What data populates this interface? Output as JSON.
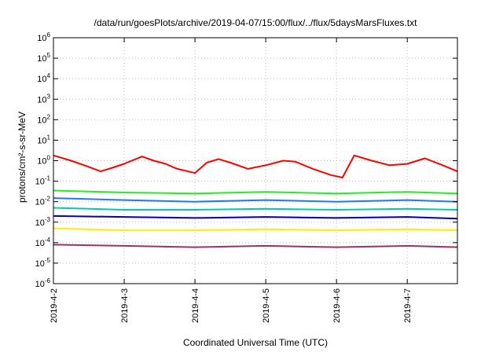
{
  "chart_data": {
    "type": "line",
    "title": "/data/run/goesPlots/archive/2019-04-07/15:00/flux/../flux/5daysMarsFluxes.txt",
    "xlabel": "Coordinated Universal Time (UTC)",
    "ylabel": "protons/cm²-s-sr-MeV",
    "y_scale": "log",
    "ylim": [
      1e-06,
      1000000.0
    ],
    "xlim": [
      "2019-04-02 00:00",
      "2019-04-07 17:00"
    ],
    "x_ticks": [
      "2019-4-2",
      "2019-4-3",
      "2019-4-4",
      "2019-4-5",
      "2019-4-6",
      "2019-4-7"
    ],
    "y_ticks": [
      {
        "base": "10",
        "exp": "-6",
        "value": 1e-06
      },
      {
        "base": "10",
        "exp": "-5",
        "value": 1e-05
      },
      {
        "base": "10",
        "exp": "-4",
        "value": 0.0001
      },
      {
        "base": "10",
        "exp": "-3",
        "value": 0.001
      },
      {
        "base": "10",
        "exp": "-2",
        "value": 0.01
      },
      {
        "base": "10",
        "exp": "-1",
        "value": 0.1
      },
      {
        "base": "10",
        "exp": "0",
        "value": 1
      },
      {
        "base": "10",
        "exp": "1",
        "value": 10
      },
      {
        "base": "10",
        "exp": "2",
        "value": 100
      },
      {
        "base": "10",
        "exp": "3",
        "value": 1000
      },
      {
        "base": "10",
        "exp": "4",
        "value": 10000
      },
      {
        "base": "10",
        "exp": "5",
        "value": 100000
      },
      {
        "base": "10",
        "exp": "6",
        "value": 1000000
      }
    ],
    "grid": true,
    "legend": "none",
    "series_colors": [
      "#ff0000",
      "#22ee22",
      "#2277ff",
      "#00ccaa",
      "#0000bb",
      "#ffee00",
      "#ffcc33",
      "#ee7744",
      "#993366"
    ],
    "series": [
      {
        "color": "#ff0000",
        "points": [
          [
            "2019-04-02 00:00",
            1.8
          ],
          [
            "2019-04-02 06:00",
            1.0
          ],
          [
            "2019-04-02 12:00",
            0.5
          ],
          [
            "2019-04-02 16:00",
            0.3
          ],
          [
            "2019-04-02 20:00",
            0.45
          ],
          [
            "2019-04-03 00:00",
            0.7
          ],
          [
            "2019-04-03 06:00",
            1.6
          ],
          [
            "2019-04-03 10:00",
            1.0
          ],
          [
            "2019-04-03 14:00",
            0.7
          ],
          [
            "2019-04-03 18:00",
            0.4
          ],
          [
            "2019-04-04 00:00",
            0.25
          ],
          [
            "2019-04-04 04:00",
            0.8
          ],
          [
            "2019-04-04 08:00",
            1.2
          ],
          [
            "2019-04-04 12:00",
            0.8
          ],
          [
            "2019-04-04 18:00",
            0.4
          ],
          [
            "2019-04-05 00:00",
            0.6
          ],
          [
            "2019-04-05 06:00",
            1.0
          ],
          [
            "2019-04-05 10:00",
            0.9
          ],
          [
            "2019-04-05 16:00",
            0.4
          ],
          [
            "2019-04-05 22:00",
            0.2
          ],
          [
            "2019-04-06 02:00",
            0.15
          ],
          [
            "2019-04-06 06:00",
            1.8
          ],
          [
            "2019-04-06 12:00",
            1.0
          ],
          [
            "2019-04-06 18:00",
            0.6
          ],
          [
            "2019-04-07 00:00",
            0.7
          ],
          [
            "2019-04-07 06:00",
            1.3
          ],
          [
            "2019-04-07 12:00",
            0.6
          ],
          [
            "2019-04-07 17:00",
            0.3
          ]
        ]
      },
      {
        "color": "#22ee22",
        "points": [
          [
            "2019-04-02 00:00",
            0.035
          ],
          [
            "2019-04-03 00:00",
            0.028
          ],
          [
            "2019-04-04 00:00",
            0.025
          ],
          [
            "2019-04-05 00:00",
            0.03
          ],
          [
            "2019-04-06 00:00",
            0.025
          ],
          [
            "2019-04-07 00:00",
            0.03
          ],
          [
            "2019-04-07 17:00",
            0.025
          ]
        ]
      },
      {
        "color": "#2277ff",
        "points": [
          [
            "2019-04-02 00:00",
            0.015
          ],
          [
            "2019-04-03 00:00",
            0.012
          ],
          [
            "2019-04-04 00:00",
            0.01
          ],
          [
            "2019-04-05 00:00",
            0.012
          ],
          [
            "2019-04-06 00:00",
            0.01
          ],
          [
            "2019-04-07 00:00",
            0.012
          ],
          [
            "2019-04-07 17:00",
            0.01
          ]
        ]
      },
      {
        "color": "#00ccaa",
        "points": [
          [
            "2019-04-02 00:00",
            0.005
          ],
          [
            "2019-04-03 00:00",
            0.004
          ],
          [
            "2019-04-04 00:00",
            0.004
          ],
          [
            "2019-04-05 00:00",
            0.0045
          ],
          [
            "2019-04-06 00:00",
            0.004
          ],
          [
            "2019-04-07 00:00",
            0.0045
          ],
          [
            "2019-04-07 17:00",
            0.004
          ]
        ]
      },
      {
        "color": "#0000bb",
        "points": [
          [
            "2019-04-02 00:00",
            0.002
          ],
          [
            "2019-04-03 00:00",
            0.0018
          ],
          [
            "2019-04-04 00:00",
            0.0016
          ],
          [
            "2019-04-05 00:00",
            0.0018
          ],
          [
            "2019-04-06 00:00",
            0.0016
          ],
          [
            "2019-04-07 00:00",
            0.0018
          ],
          [
            "2019-04-07 17:00",
            0.0015
          ]
        ]
      },
      {
        "color": "#ffee00",
        "points": [
          [
            "2019-04-02 00:00",
            0.0005
          ],
          [
            "2019-04-03 00:00",
            0.0004
          ],
          [
            "2019-04-04 00:00",
            0.0004
          ],
          [
            "2019-04-05 00:00",
            0.00045
          ],
          [
            "2019-04-06 00:00",
            0.0004
          ],
          [
            "2019-04-07 00:00",
            0.00045
          ],
          [
            "2019-04-07 17:00",
            0.0004
          ]
        ]
      },
      {
        "color": "#993366",
        "points": [
          [
            "2019-04-02 00:00",
            8e-05
          ],
          [
            "2019-04-03 00:00",
            7e-05
          ],
          [
            "2019-04-04 00:00",
            6e-05
          ],
          [
            "2019-04-05 00:00",
            7e-05
          ],
          [
            "2019-04-06 00:00",
            6e-05
          ],
          [
            "2019-04-07 00:00",
            7e-05
          ],
          [
            "2019-04-07 17:00",
            6e-05
          ]
        ]
      }
    ]
  }
}
